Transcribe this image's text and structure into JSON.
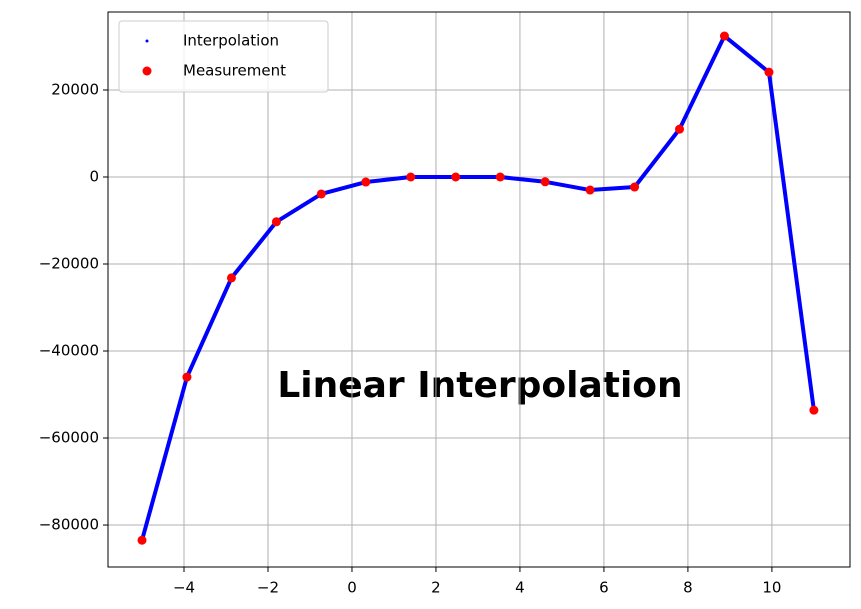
{
  "chart_data": {
    "type": "scatter",
    "annotation": "Linear Interpolation",
    "x": [
      -5,
      -3.93,
      -2.87,
      -1.8,
      -0.73,
      0.33,
      1.4,
      2.47,
      3.53,
      4.6,
      5.67,
      6.73,
      7.8,
      8.87,
      9.93,
      11
    ],
    "series": [
      {
        "name": "Interpolation",
        "color": "#0000ff",
        "style": "line",
        "values": [
          -83500,
          -46000,
          -23200,
          -10300,
          -3900,
          -1150,
          0,
          0,
          0,
          -1100,
          -3000,
          -2300,
          11000,
          32400,
          24100,
          -53600
        ]
      },
      {
        "name": "Measurement",
        "color": "#ff0000",
        "style": "points",
        "values": [
          -83500,
          -46000,
          -23200,
          -10300,
          -3900,
          -1150,
          0,
          0,
          0,
          -1100,
          -3000,
          -2300,
          11000,
          32400,
          24100,
          -53600
        ]
      }
    ],
    "xlim": [
      -5.81,
      11.86
    ],
    "ylim": [
      -89650,
      37930
    ],
    "xticks": [
      {
        "value": -4,
        "label": "−4"
      },
      {
        "value": -2,
        "label": "−2"
      },
      0,
      2,
      4,
      6,
      8,
      10
    ],
    "yticks": [
      {
        "value": -80000,
        "label": "−80000"
      },
      {
        "value": -60000,
        "label": "−60000"
      },
      {
        "value": -40000,
        "label": "−40000"
      },
      {
        "value": -20000,
        "label": "−20000"
      },
      0,
      20000
    ],
    "grid": true,
    "legend": "upper-left"
  }
}
